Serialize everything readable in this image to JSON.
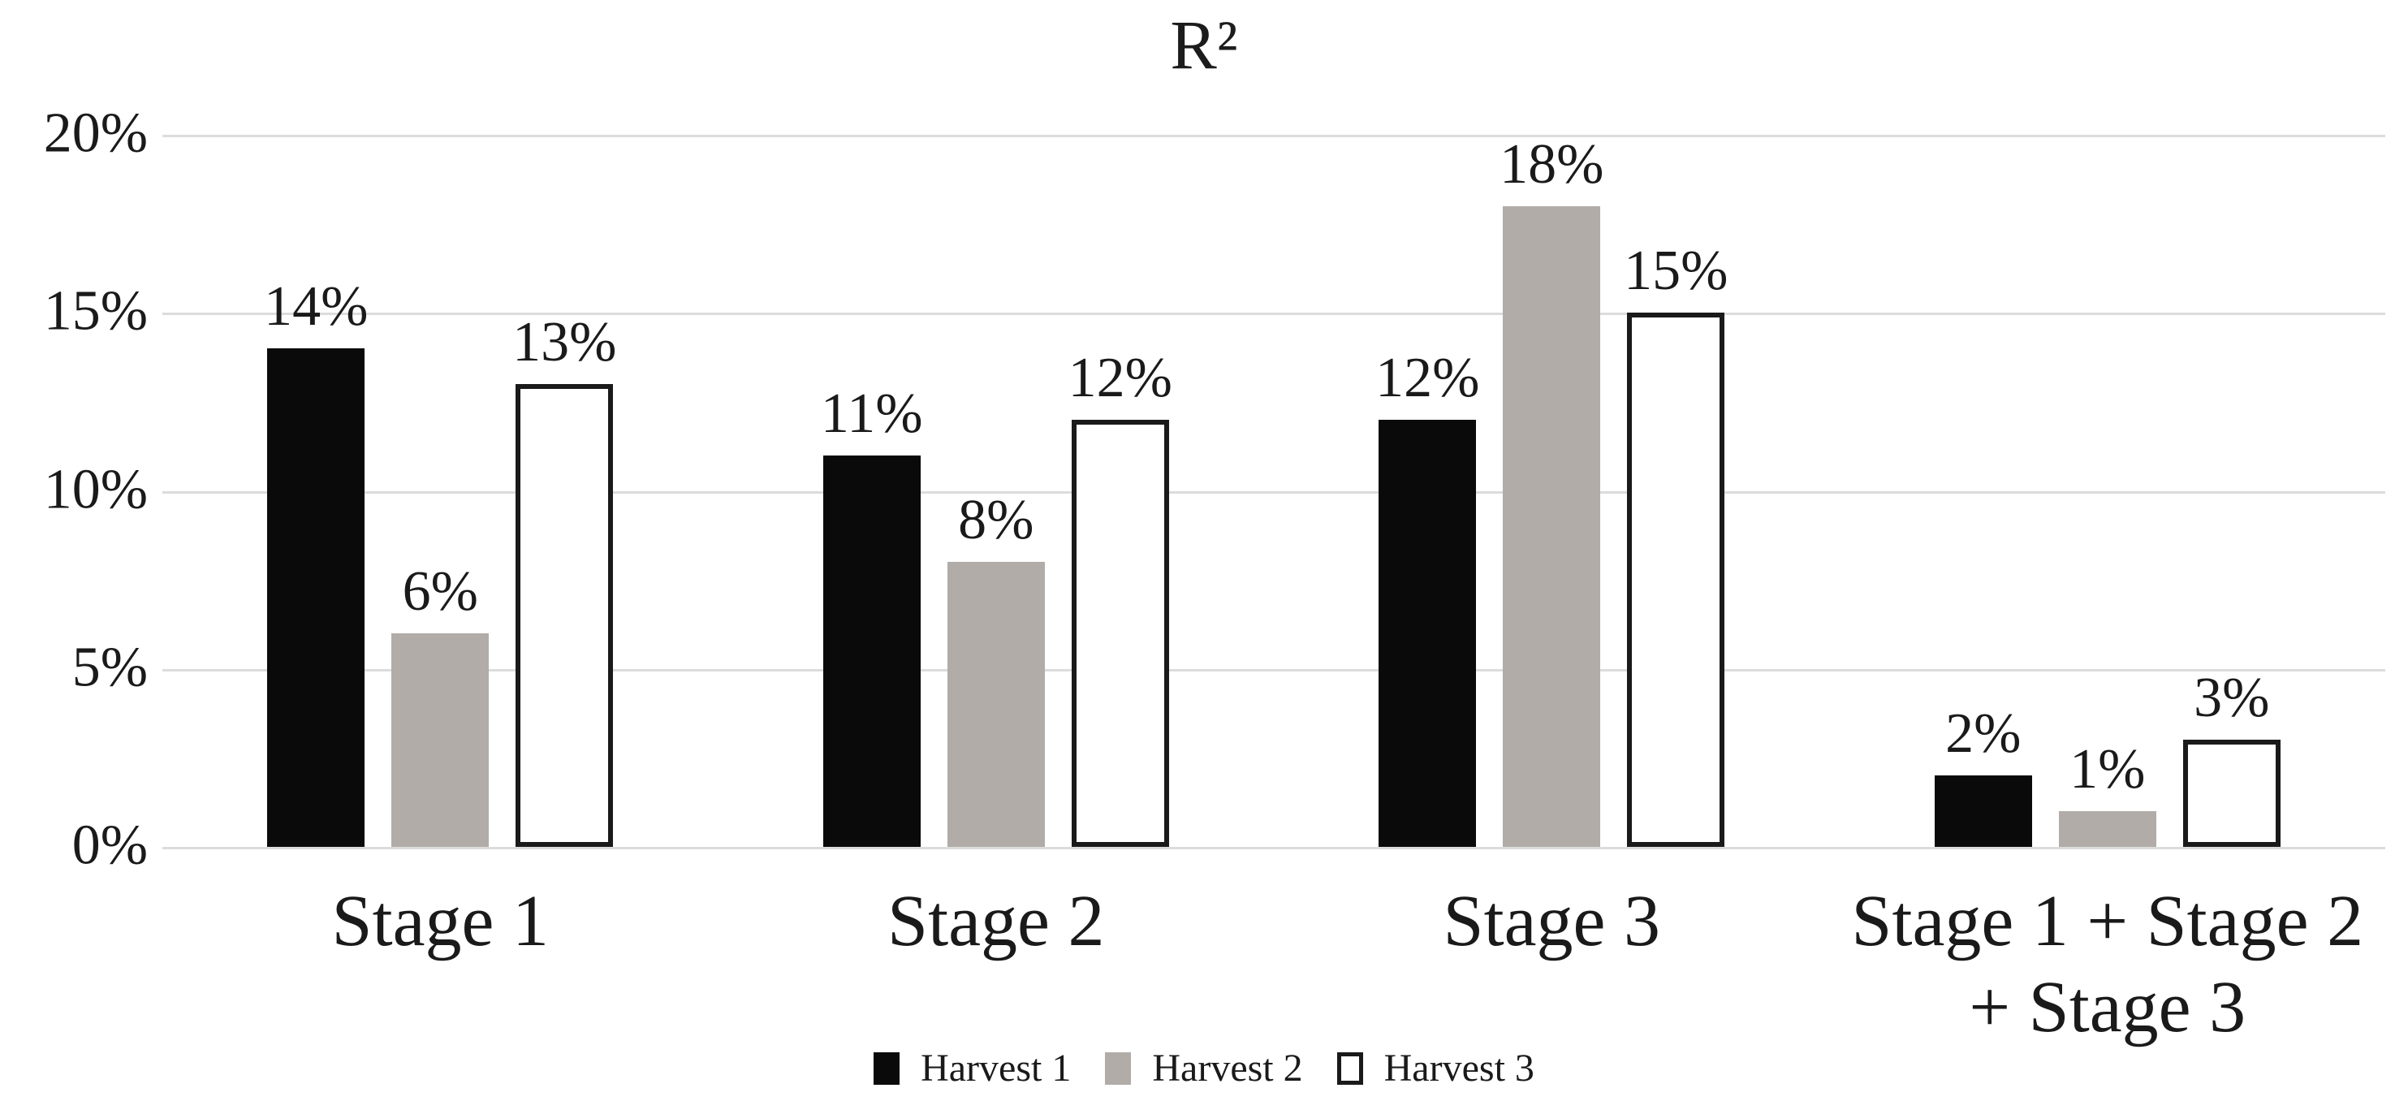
{
  "chart_data": {
    "type": "bar",
    "title": "R²",
    "categories": [
      "Stage 1",
      "Stage 2",
      "Stage 3",
      "Stage 1 + Stage 2\n+ Stage 3"
    ],
    "series": [
      {
        "name": "Harvest 1",
        "values": [
          14,
          11,
          12,
          2
        ],
        "labels": [
          "14%",
          "11%",
          "12%",
          "2%"
        ],
        "fill": "#0a0a0a",
        "border": "none"
      },
      {
        "name": "Harvest 2",
        "values": [
          6,
          8,
          18,
          1
        ],
        "labels": [
          "6%",
          "8%",
          "18%",
          "1%"
        ],
        "fill": "#b1aca8",
        "border": "none"
      },
      {
        "name": "Harvest 3",
        "values": [
          13,
          12,
          15,
          3
        ],
        "labels": [
          "13%",
          "12%",
          "15%",
          "3%"
        ],
        "fill": "#ffffff",
        "border": "#1a1a1a"
      }
    ],
    "y_axis": {
      "ticks": [
        "20%",
        "15%",
        "10%",
        "5%",
        "0%"
      ],
      "min": 0,
      "max": 20,
      "grid": true
    },
    "legend": {
      "position": "bottom",
      "entries": [
        "Harvest 1",
        "Harvest 2",
        "Harvest 3"
      ]
    }
  },
  "colors": {
    "background": "#ffffff",
    "grid": "#dcdcdc",
    "text": "#1a1a1a",
    "bar_black": "#0a0a0a",
    "bar_gray": "#b1aca8",
    "bar_white": "#ffffff",
    "bar_outline": "#1a1a1a"
  }
}
